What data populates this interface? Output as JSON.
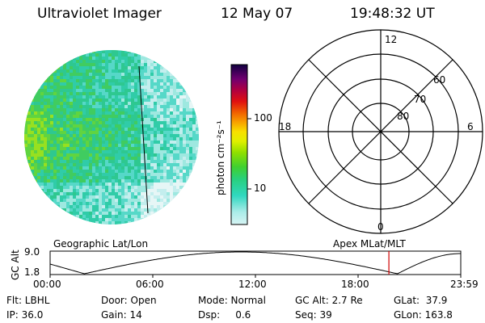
{
  "header": {
    "instrument": "Ultraviolet Imager",
    "date": "12 May 07",
    "time": "19:48:32 UT"
  },
  "colorbar": {
    "unit_label": "photon cm⁻²s⁻¹",
    "tick_100": "100",
    "tick_10": "10"
  },
  "polar_plot": {
    "mlt_labels": {
      "top": "12",
      "left": "18",
      "right": "6",
      "bottom": "0"
    },
    "lat_labels": [
      "60",
      "70",
      "80"
    ]
  },
  "orbit_strip": {
    "left_title": "Geographic Lat/Lon",
    "right_title": "Apex MLat/MLT",
    "y_axis_label": "GC Alt",
    "y_max": "9.0",
    "y_min": "1.8",
    "time_ticks": [
      "00:00",
      "06:00",
      "12:00",
      "18:00",
      "23:59"
    ],
    "current_time_marker_hours": 19.8,
    "marker_color": "#d00000"
  },
  "status": {
    "flt": "Flt: LBHL",
    "door": "Door: Open",
    "mode": "Mode: Normal",
    "gcalt": "GC Alt: 2.7 Re",
    "glat": "GLat:  37.9",
    "ip": "IP: 36.0",
    "gain": "Gain: 14",
    "dsp": "Dsp:     0.6",
    "seq": "Seq: 39",
    "glon": "GLon: 163.8"
  }
}
